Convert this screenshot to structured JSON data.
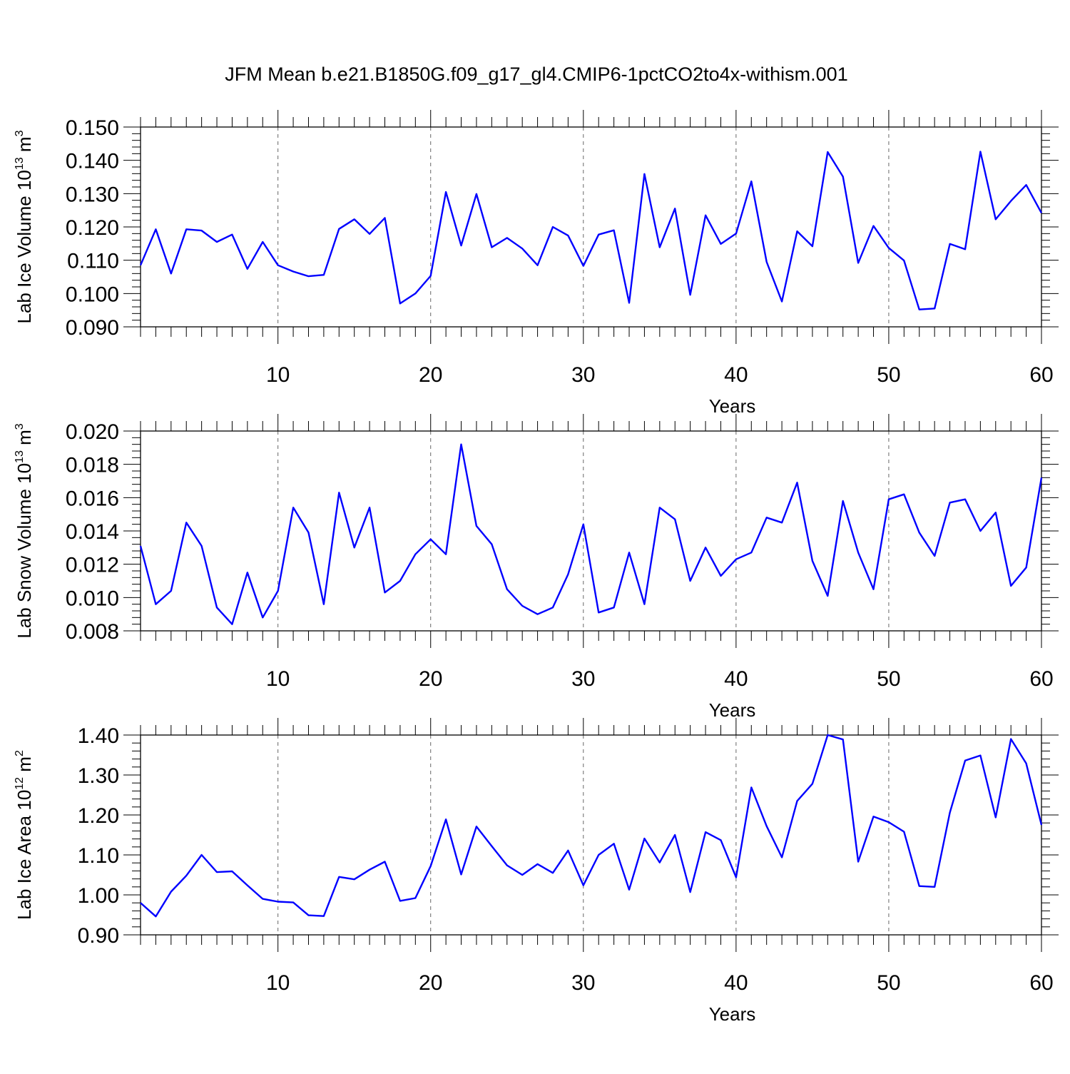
{
  "title": "JFM Mean b.e21.B1850G.f09_g17_gl4.CMIP6-1pctCO2to4x-withism.001",
  "line_color": "#0000ff",
  "chart_data": [
    {
      "type": "line",
      "ylabel_main": "Lab Ice Volume 10",
      "ylabel_exp": "13",
      "ylabel_unit": " m",
      "ylabel_unit_exp": "3",
      "xlabel": "Years",
      "xlim": [
        1,
        60
      ],
      "ylim": [
        0.09,
        0.15
      ],
      "yticks": [
        "0.090",
        "0.100",
        "0.110",
        "0.120",
        "0.130",
        "0.140",
        "0.150"
      ],
      "xticks": [
        "10",
        "20",
        "30",
        "40",
        "50",
        "60"
      ],
      "grid": "vertical dashed at x-ticks",
      "series": [
        {
          "x": [
            1,
            2,
            3,
            4,
            5,
            6,
            7,
            8,
            9,
            10,
            11,
            12,
            13,
            14,
            15,
            16,
            17,
            18,
            19,
            20,
            21,
            22,
            23,
            24,
            25,
            26,
            27,
            28,
            29,
            30,
            31,
            32,
            33,
            34,
            35,
            36,
            37,
            38,
            39,
            40,
            41,
            42,
            43,
            44,
            45,
            46,
            47,
            48,
            49,
            50,
            51,
            52,
            53,
            54,
            55,
            56,
            57,
            58,
            59,
            60
          ],
          "values": [
            0.1085,
            0.1193,
            0.106,
            0.1193,
            0.1189,
            0.1155,
            0.1177,
            0.1074,
            0.1155,
            0.1085,
            0.1066,
            0.1052,
            0.1056,
            0.1194,
            0.1223,
            0.1179,
            0.1227,
            0.097,
            0.1,
            0.1053,
            0.1305,
            0.1144,
            0.1299,
            0.1139,
            0.1167,
            0.1135,
            0.1085,
            0.12,
            0.1174,
            0.1083,
            0.1177,
            0.119,
            0.0972,
            0.1359,
            0.1139,
            0.1255,
            0.0996,
            0.1235,
            0.1149,
            0.118,
            0.1337,
            0.1095,
            0.0976,
            0.1187,
            0.1142,
            0.1425,
            0.1351,
            0.1092,
            0.1203,
            0.1137,
            0.1099,
            0.0952,
            0.0955,
            0.1149,
            0.1133,
            0.1426,
            0.1223,
            0.1278,
            0.1326,
            0.1242
          ]
        }
      ]
    },
    {
      "type": "line",
      "ylabel_main": "Lab Snow Volume 10",
      "ylabel_exp": "13",
      "ylabel_unit": " m",
      "ylabel_unit_exp": "3",
      "xlabel": "Years",
      "xlim": [
        1,
        60
      ],
      "ylim": [
        0.008,
        0.02
      ],
      "yticks": [
        "0.008",
        "0.010",
        "0.012",
        "0.014",
        "0.016",
        "0.018",
        "0.020"
      ],
      "xticks": [
        "10",
        "20",
        "30",
        "40",
        "50",
        "60"
      ],
      "grid": "vertical dashed at x-ticks",
      "series": [
        {
          "x": [
            1,
            2,
            3,
            4,
            5,
            6,
            7,
            8,
            9,
            10,
            11,
            12,
            13,
            14,
            15,
            16,
            17,
            18,
            19,
            20,
            21,
            22,
            23,
            24,
            25,
            26,
            27,
            28,
            29,
            30,
            31,
            32,
            33,
            34,
            35,
            36,
            37,
            38,
            39,
            40,
            41,
            42,
            43,
            44,
            45,
            46,
            47,
            48,
            49,
            50,
            51,
            52,
            53,
            54,
            55,
            56,
            57,
            58,
            59,
            60
          ],
          "values": [
            0.0131,
            0.0096,
            0.0104,
            0.0145,
            0.0131,
            0.0094,
            0.0084,
            0.0115,
            0.0088,
            0.0104,
            0.0154,
            0.0139,
            0.0096,
            0.0163,
            0.013,
            0.0154,
            0.0103,
            0.011,
            0.0126,
            0.0135,
            0.0126,
            0.0192,
            0.0143,
            0.0132,
            0.0105,
            0.0095,
            0.009,
            0.0094,
            0.0114,
            0.0144,
            0.0091,
            0.0094,
            0.0127,
            0.0096,
            0.0154,
            0.0147,
            0.011,
            0.013,
            0.0113,
            0.0123,
            0.0127,
            0.0148,
            0.0145,
            0.0169,
            0.0122,
            0.0101,
            0.0158,
            0.0127,
            0.0105,
            0.0159,
            0.0162,
            0.0139,
            0.0125,
            0.0157,
            0.0159,
            0.014,
            0.0151,
            0.0107,
            0.0118,
            0.0172
          ]
        }
      ]
    },
    {
      "type": "line",
      "ylabel_main": "Lab Ice Area 10",
      "ylabel_exp": "12",
      "ylabel_unit": " m",
      "ylabel_unit_exp": "2",
      "xlabel": "Years",
      "xlim": [
        1,
        60
      ],
      "ylim": [
        0.9,
        1.4
      ],
      "yticks": [
        "0.90",
        "1.00",
        "1.10",
        "1.20",
        "1.30",
        "1.40"
      ],
      "xticks": [
        "10",
        "20",
        "30",
        "40",
        "50",
        "60"
      ],
      "grid": "vertical dashed at x-ticks",
      "series": [
        {
          "x": [
            1,
            2,
            3,
            4,
            5,
            6,
            7,
            8,
            9,
            10,
            11,
            12,
            13,
            14,
            15,
            16,
            17,
            18,
            19,
            20,
            21,
            22,
            23,
            24,
            25,
            26,
            27,
            28,
            29,
            30,
            31,
            32,
            33,
            34,
            35,
            36,
            37,
            38,
            39,
            40,
            41,
            42,
            43,
            44,
            45,
            46,
            47,
            48,
            49,
            50,
            51,
            52,
            53,
            54,
            55,
            56,
            57,
            58,
            59,
            60
          ],
          "values": [
            0.98,
            0.946,
            1.008,
            1.048,
            1.1,
            1.057,
            1.059,
            1.024,
            0.99,
            0.983,
            0.981,
            0.949,
            0.947,
            1.045,
            1.039,
            1.063,
            1.083,
            0.985,
            0.992,
            1.072,
            1.189,
            1.051,
            1.171,
            1.122,
            1.074,
            1.05,
            1.077,
            1.055,
            1.111,
            1.024,
            1.1,
            1.128,
            1.013,
            1.141,
            1.081,
            1.15,
            1.007,
            1.157,
            1.137,
            1.044,
            1.269,
            1.172,
            1.094,
            1.235,
            1.278,
            1.4,
            1.389,
            1.083,
            1.196,
            1.182,
            1.158,
            1.022,
            1.02,
            1.206,
            1.336,
            1.349,
            1.194,
            1.39,
            1.329,
            1.175
          ]
        }
      ]
    }
  ]
}
